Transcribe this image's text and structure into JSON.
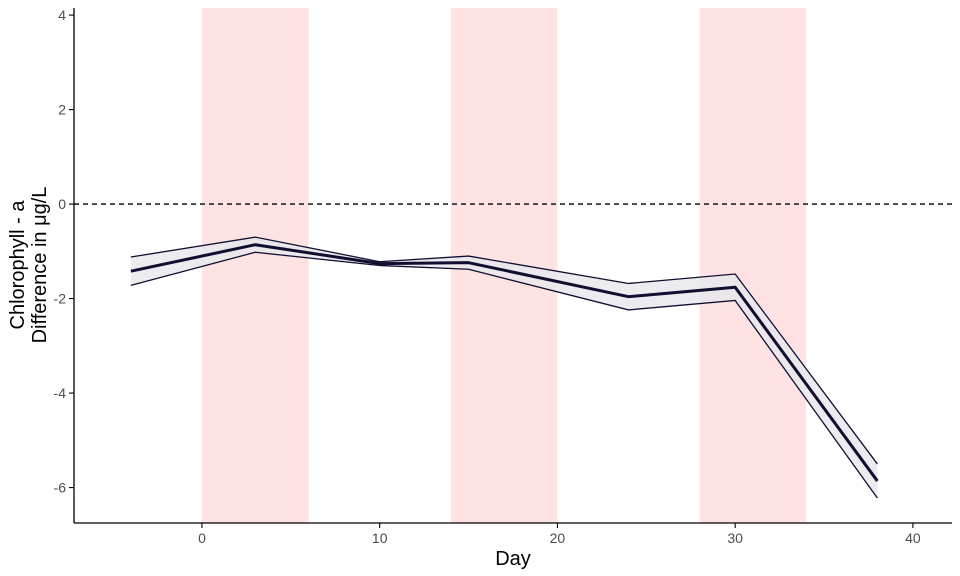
{
  "chart_data": {
    "type": "line",
    "title": "",
    "xlabel": "Day",
    "ylabel": [
      "Chlorophyll - a",
      "Difference in μg/L"
    ],
    "xlim": [
      -7.2,
      42.2
    ],
    "ylim": [
      -6.75,
      4.15
    ],
    "x_ticks": [
      0,
      10,
      20,
      30,
      40
    ],
    "y_ticks": [
      -6,
      -4,
      -2,
      0,
      2,
      4
    ],
    "grid": false,
    "legend": "none",
    "reference_line": {
      "y": 0,
      "style": "dashed"
    },
    "shaded_periods": [
      {
        "x_start": 0,
        "x_end": 6
      },
      {
        "x_start": 14,
        "x_end": 20
      },
      {
        "x_start": 28,
        "x_end": 34
      }
    ],
    "series": [
      {
        "x": [
          -4,
          3,
          10,
          15,
          24,
          30,
          38
        ],
        "values": [
          -1.42,
          -0.86,
          -1.26,
          -1.24,
          -1.96,
          -1.76,
          -5.86
        ],
        "lower": [
          -1.72,
          -1.02,
          -1.3,
          -1.38,
          -2.24,
          -2.04,
          -6.22
        ],
        "upper": [
          -1.12,
          -0.7,
          -1.22,
          -1.1,
          -1.68,
          -1.48,
          -5.5
        ]
      }
    ],
    "colors": {
      "line": "#100f30",
      "ribbon_fill": "#e9e8ec",
      "shade_fill": "#ffe3e4",
      "axis": "#000000",
      "tick_text": "#4d4d4d"
    }
  }
}
